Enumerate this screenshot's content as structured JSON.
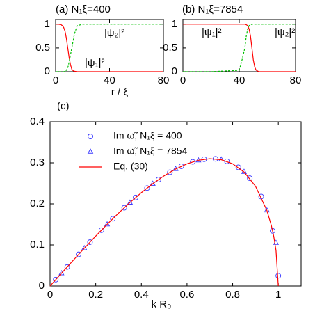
{
  "chart_data": [
    {
      "type": "line",
      "title": "(a) N₁ξ=400",
      "xlabel": "r / ξ",
      "x": [
        0,
        2,
        4,
        5,
        6,
        7,
        8,
        9,
        10,
        11,
        12,
        13,
        14,
        16,
        20,
        40,
        80
      ],
      "series": [
        {
          "name": "|ψ₁|²",
          "color": "#ff0000",
          "dash": false,
          "values": [
            1,
            1,
            0.99,
            0.97,
            0.93,
            0.85,
            0.7,
            0.5,
            0.3,
            0.15,
            0.05,
            0.02,
            0.01,
            0,
            0,
            0,
            0
          ]
        },
        {
          "name": "|ψ₂|²",
          "color": "#00c000",
          "dash": true,
          "values": [
            0,
            0,
            0,
            0,
            0,
            0.01,
            0.03,
            0.08,
            0.2,
            0.35,
            0.5,
            0.65,
            0.8,
            0.97,
            1,
            1,
            1
          ]
        }
      ],
      "xlim": [
        0,
        80
      ],
      "xticks": [
        0,
        40,
        80
      ],
      "ylim": [
        0,
        1.1
      ],
      "yticks": [
        0,
        0.5,
        1
      ]
    },
    {
      "type": "line",
      "title": "(b) N₁ξ=7854",
      "x": [
        0,
        20,
        40,
        42,
        44,
        45,
        46,
        47,
        48,
        49,
        50,
        51,
        52,
        54,
        56,
        60,
        80
      ],
      "series": [
        {
          "name": "|ψ₁|²",
          "color": "#ff0000",
          "dash": false,
          "values": [
            1,
            1,
            1,
            1,
            1,
            0.99,
            0.97,
            0.9,
            0.75,
            0.5,
            0.25,
            0.1,
            0.03,
            0,
            0,
            0,
            0
          ]
        },
        {
          "name": "|ψ₂|²",
          "color": "#00c000",
          "dash": true,
          "values": [
            0,
            0,
            0.03,
            0.25,
            0.5,
            0.75,
            0.9,
            0.97,
            0.99,
            1,
            1,
            1,
            1,
            1,
            1,
            1,
            1
          ]
        }
      ],
      "xlim": [
        0,
        80
      ],
      "xticks": [
        0,
        40,
        80
      ],
      "ylim": [
        0,
        1.1
      ],
      "yticks": [
        0,
        0.5,
        1
      ]
    },
    {
      "type": "scatter",
      "title": "(c)",
      "xlabel": "k R₀",
      "legend": "upper left",
      "series": [
        {
          "name": "Im ω̃, N₁ξ = 400",
          "color": "#3a3aff",
          "marker": "circle",
          "x": [
            0.025,
            0.075,
            0.125,
            0.175,
            0.225,
            0.275,
            0.325,
            0.375,
            0.425,
            0.475,
            0.525,
            0.575,
            0.625,
            0.675,
            0.725,
            0.775,
            0.825,
            0.875,
            0.925,
            0.975,
            1.0
          ],
          "values": [
            0.0155,
            0.0464,
            0.0769,
            0.1068,
            0.1359,
            0.1639,
            0.1906,
            0.2155,
            0.2385,
            0.2592,
            0.277,
            0.2917,
            0.3025,
            0.3088,
            0.3096,
            0.3037,
            0.2891,
            0.2626,
            0.2179,
            0.1343,
            0.025
          ]
        },
        {
          "name": "Im ω̃, N₁ξ = 7854",
          "color": "#3a3aff",
          "marker": "triangle",
          "x": [
            0.05,
            0.15,
            0.25,
            0.35,
            0.45,
            0.55,
            0.65,
            0.75,
            0.85,
            0.95,
            0.99
          ],
          "values": [
            0.031,
            0.092,
            0.15,
            0.203,
            0.249,
            0.285,
            0.306,
            0.308,
            0.278,
            0.184,
            0.105
          ]
        },
        {
          "name": "Eq. (30)",
          "color": "#ff0000",
          "marker": "line",
          "x": [
            0,
            0.05,
            0.1,
            0.15,
            0.2,
            0.25,
            0.3,
            0.35,
            0.4,
            0.45,
            0.5,
            0.55,
            0.6,
            0.65,
            0.7,
            0.75,
            0.8,
            0.85,
            0.9,
            0.95,
            0.97,
            0.98,
            0.99,
            1.0
          ],
          "values": [
            0,
            0.031,
            0.0617,
            0.0919,
            0.1215,
            0.1501,
            0.1774,
            0.2033,
            0.2273,
            0.2491,
            0.2685,
            0.2848,
            0.2976,
            0.3062,
            0.3099,
            0.3076,
            0.2976,
            0.2776,
            0.2432,
            0.1839,
            0.1462,
            0.1209,
            0.0866,
            0
          ]
        }
      ],
      "xlim": [
        0,
        1.1
      ],
      "xticks": [
        0,
        0.2,
        0.4,
        0.6,
        0.8,
        1
      ],
      "ylim": [
        0,
        0.4
      ],
      "yticks": [
        0,
        0.1,
        0.2,
        0.3,
        0.4
      ]
    }
  ]
}
